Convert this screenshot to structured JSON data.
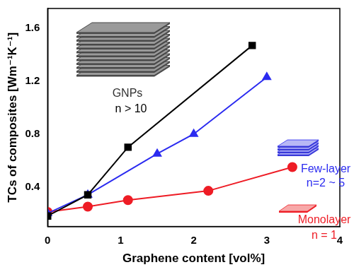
{
  "chart_data": {
    "type": "line",
    "xlabel": "Graphene content [vol%]",
    "ylabel": "TCs of composites [Wm⁻¹K⁻¹]",
    "xlim": [
      0,
      4
    ],
    "xticks": [
      0,
      1,
      2,
      3,
      4
    ],
    "ylim": [
      0.1,
      1.75
    ],
    "yticks": [
      0.4,
      0.8,
      1.2,
      1.6
    ],
    "grid": false,
    "series": [
      {
        "name": "GNPs",
        "color": "#000000",
        "marker": "square",
        "x": [
          0,
          0.55,
          1.1,
          2.8
        ],
        "values": [
          0.18,
          0.34,
          0.7,
          1.47
        ]
      },
      {
        "name": "Few-layer",
        "color": "#2b2bf0",
        "marker": "triangle",
        "x": [
          0,
          0.55,
          1.5,
          2.0,
          3.0
        ],
        "values": [
          0.2,
          0.34,
          0.65,
          0.8,
          1.23
        ]
      },
      {
        "name": "Monolayer",
        "color": "#ee1c25",
        "marker": "circle",
        "x": [
          0,
          0.55,
          1.1,
          2.2,
          3.35
        ],
        "values": [
          0.21,
          0.25,
          0.3,
          0.37,
          0.55
        ]
      }
    ],
    "annotations": [
      {
        "text": "GNPs",
        "color": "#333333"
      },
      {
        "text": "n > 10",
        "color": "#000000"
      },
      {
        "text": "Few-layer",
        "color": "#2b2bf0"
      },
      {
        "text": "n=2 ~ 5",
        "color": "#2b2bf0"
      },
      {
        "text": "Monolayer",
        "color": "#ee1c25"
      },
      {
        "text": "n = 1",
        "color": "#ee1c25"
      }
    ]
  }
}
